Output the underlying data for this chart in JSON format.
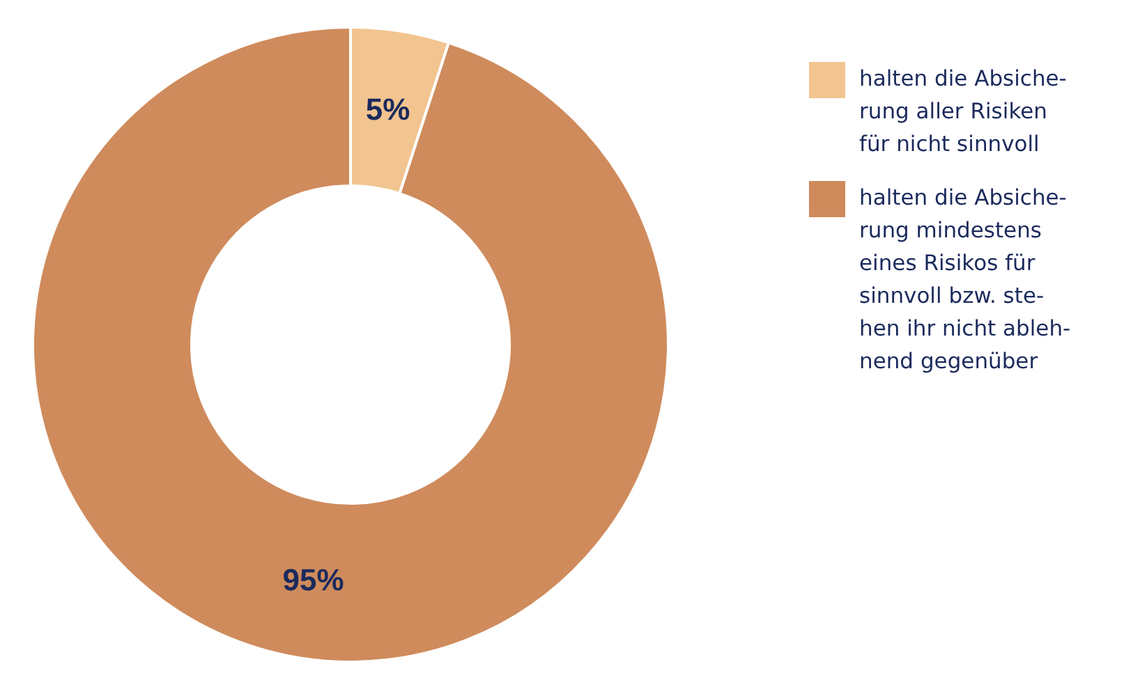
{
  "chart_data": {
    "type": "donut",
    "categories": [
      "halten die Absiche-\nrung aller Risiken\nfür nicht sinnvoll",
      "halten die Absiche-\nrung mindestens\neines Risikos für\nsinnvoll bzw. ste-\nhen ihr nicht ableh-\nnend gegenüber"
    ],
    "values": [
      5,
      95
    ],
    "colors": [
      "#f2c490",
      "#cf8b5c"
    ],
    "value_labels": [
      "5%",
      "95%"
    ],
    "legend": "right"
  }
}
